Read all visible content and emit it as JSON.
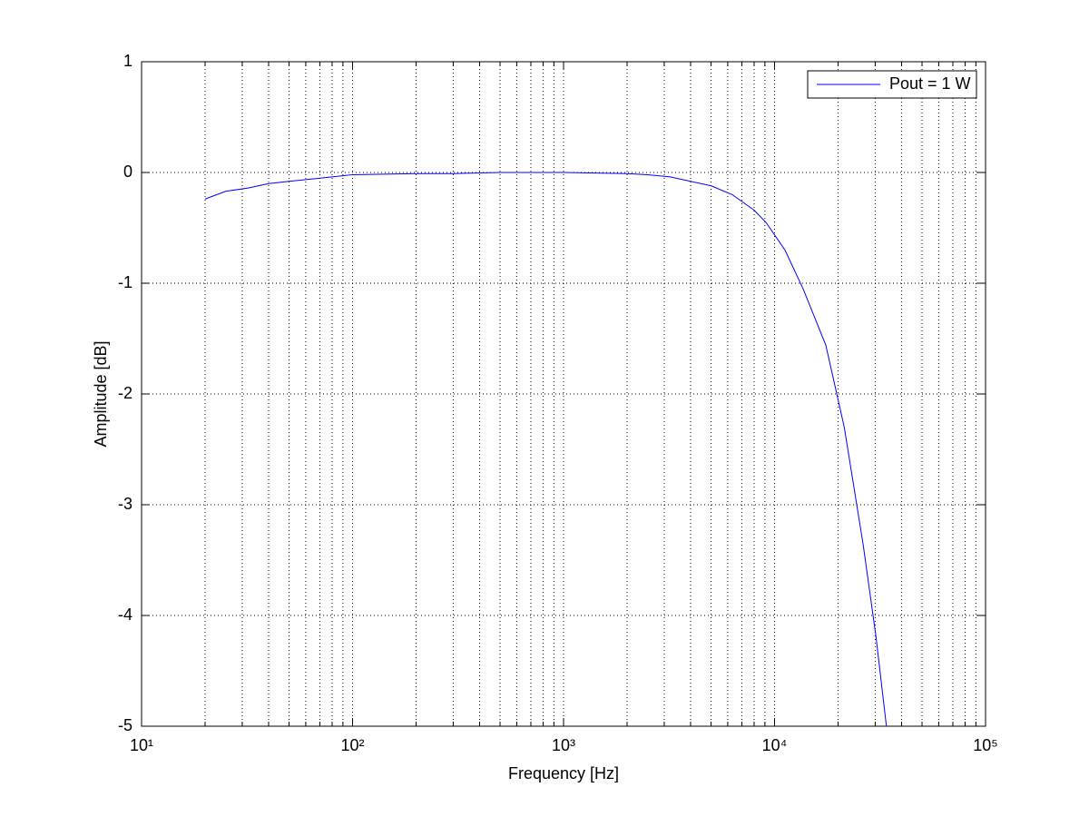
{
  "chart_data": {
    "type": "line",
    "xlabel": "Frequency [Hz]",
    "ylabel": "Amplitude [dB]",
    "x": [
      20,
      25,
      32,
      40,
      50,
      63,
      80,
      100,
      200,
      300,
      500,
      1000,
      2000,
      2500,
      3200,
      4000,
      5000,
      6300,
      8000,
      9100,
      11200,
      13650,
      17500,
      21400,
      26300,
      30200,
      33900
    ],
    "series": [
      {
        "name": "Pout = 1 W",
        "color": "#0000ff",
        "values": [
          -0.24,
          -0.17,
          -0.14,
          -0.1,
          -0.08,
          -0.06,
          -0.04,
          -0.02,
          -0.01,
          -0.01,
          0,
          0,
          -0.01,
          -0.02,
          -0.04,
          -0.08,
          -0.12,
          -0.2,
          -0.34,
          -0.45,
          -0.7,
          -1.05,
          -1.56,
          -2.3,
          -3.36,
          -4.18,
          -5
        ]
      }
    ],
    "xscale": "log",
    "xlim": [
      10,
      100000
    ],
    "ylim": [
      -5,
      1
    ],
    "xticks": [
      {
        "value": 10,
        "label": "10¹"
      },
      {
        "value": 100,
        "label": "10²"
      },
      {
        "value": 1000,
        "label": "10³"
      },
      {
        "value": 10000,
        "label": "10⁴"
      },
      {
        "value": 100000,
        "label": "10⁵"
      }
    ],
    "xminorticks": [
      20,
      30,
      40,
      50,
      60,
      70,
      80,
      90,
      200,
      300,
      400,
      500,
      600,
      700,
      800,
      900,
      2000,
      3000,
      4000,
      5000,
      6000,
      7000,
      8000,
      9000,
      20000,
      30000,
      40000,
      50000,
      60000,
      70000,
      80000,
      90000
    ],
    "yticks": [
      -5,
      -4,
      -3,
      -2,
      -1,
      0,
      1
    ],
    "grid": true,
    "legend": "upper right"
  }
}
